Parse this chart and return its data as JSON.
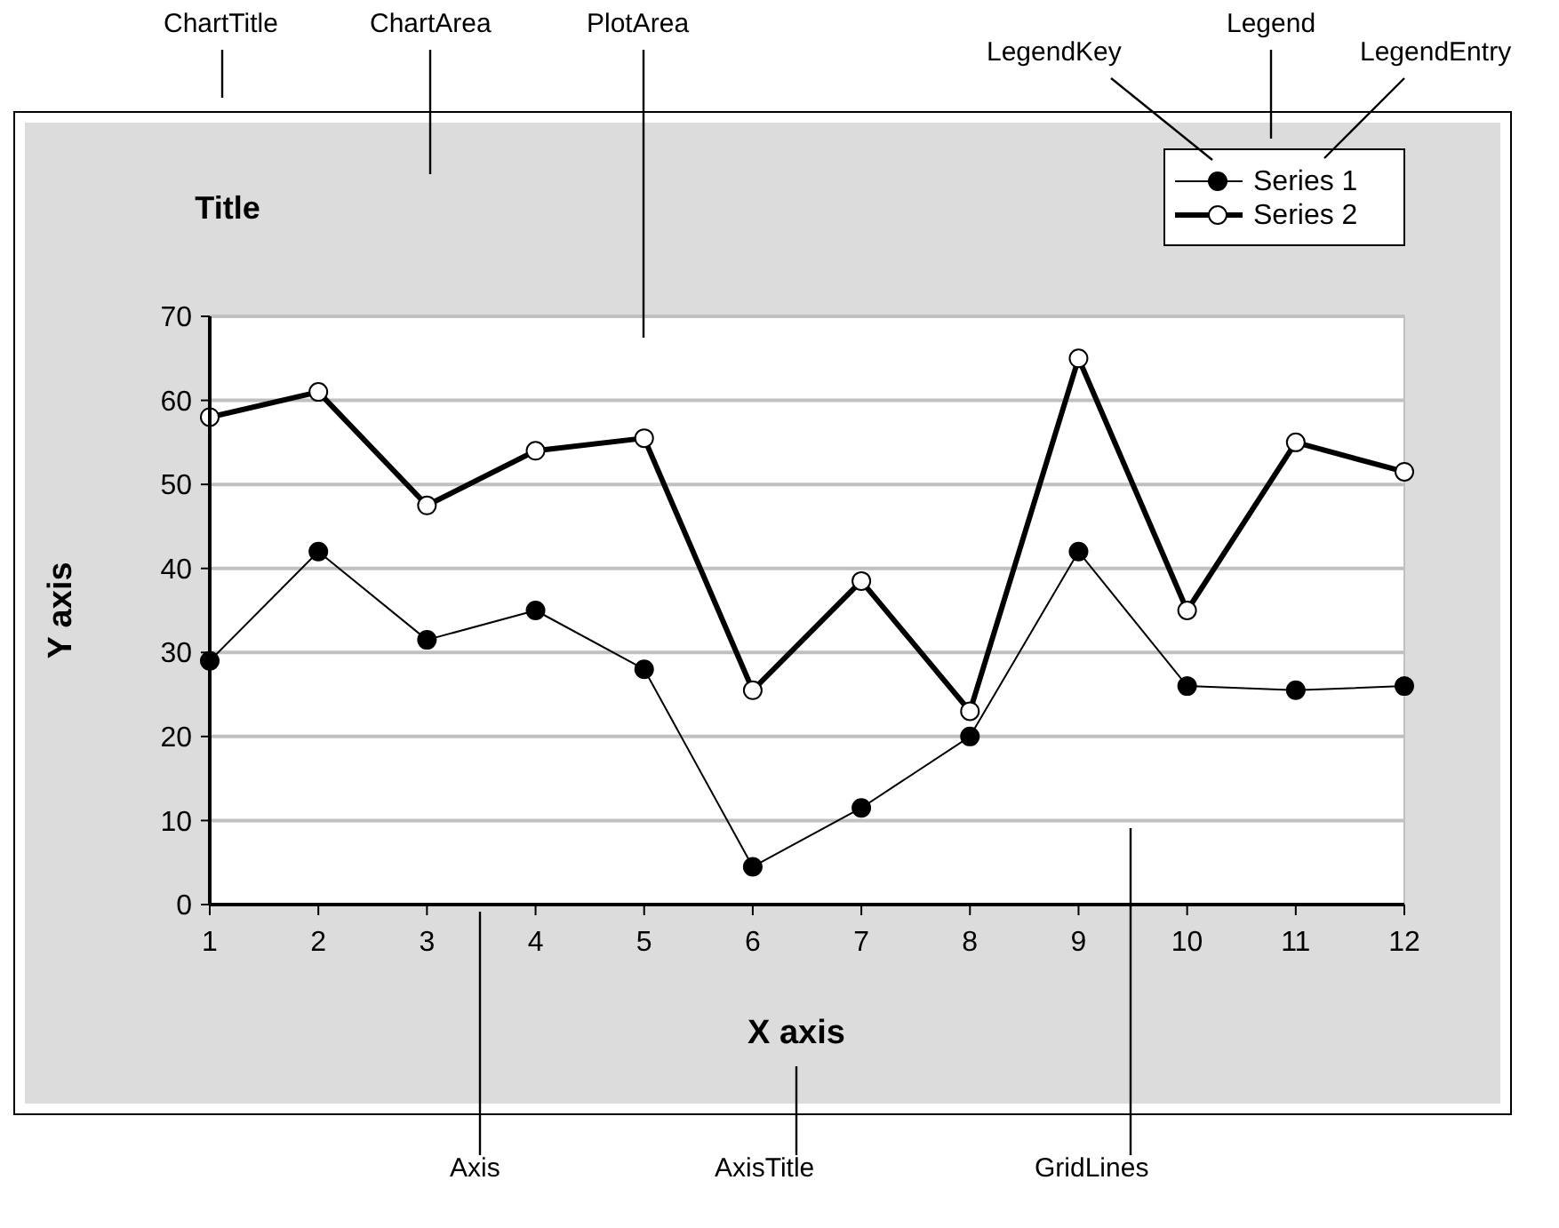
{
  "chart_data": {
    "type": "line",
    "title": "Title",
    "xlabel": "X axis",
    "ylabel": "Y axis",
    "x": [
      1,
      2,
      3,
      4,
      5,
      6,
      7,
      8,
      9,
      10,
      11,
      12
    ],
    "series": [
      {
        "name": "Series 1",
        "color": "#000000",
        "marker": "circle",
        "values": [
          29,
          42,
          31.5,
          35,
          28,
          4.5,
          11.5,
          20,
          42,
          26,
          25.5,
          26
        ]
      },
      {
        "name": "Series 2",
        "color": "#000000",
        "marker": "circle",
        "values": [
          58,
          61,
          47.5,
          54,
          55.5,
          25.5,
          38.5,
          23,
          65,
          35,
          55,
          51.5
        ]
      }
    ],
    "xlim": [
      1,
      12
    ],
    "xticks": [
      1,
      2,
      3,
      4,
      5,
      6,
      7,
      8,
      9,
      10,
      11,
      12
    ],
    "ylim": [
      0,
      70
    ],
    "yticks": [
      0,
      10,
      20,
      30,
      40,
      50,
      60,
      70
    ],
    "grid": "y",
    "legend": "top right",
    "annotations": [
      "ChartTitle",
      "ChartArea",
      "PlotArea",
      "LegendKey",
      "Legend",
      "LegendEntry",
      "Axis",
      "AxisTitle",
      "GridLines"
    ]
  }
}
